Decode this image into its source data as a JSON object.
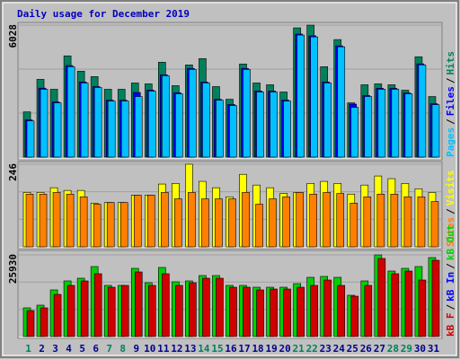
{
  "title": "Daily usage for December 2019",
  "legend_separator": "/",
  "chart_data": [
    {
      "type": "bar",
      "ylim": [
        0,
        6028
      ],
      "yticks": [
        6028
      ],
      "series": [
        {
          "name": "Pages",
          "color": "#00c0ff",
          "values": [
            1651,
            3097,
            2477,
            4129,
            3386,
            3179,
            2560,
            2560,
            2766,
            3014,
            3716,
            2890,
            4005,
            3386,
            2601,
            2353,
            4005,
            2973,
            2973,
            2560,
            5574,
            5491,
            3386,
            5037,
            2271,
            2766,
            3097,
            3097,
            2890,
            4211,
            2394
          ]
        },
        {
          "name": "Files",
          "color": "#0000ff",
          "values": [
            1700,
            3150,
            2520,
            4180,
            3430,
            3220,
            2600,
            2600,
            2950,
            3060,
            3760,
            2940,
            4050,
            3430,
            2640,
            2400,
            4050,
            3020,
            3020,
            2600,
            5620,
            5540,
            3430,
            5080,
            2420,
            2810,
            3140,
            3140,
            2930,
            4260,
            2440
          ]
        },
        {
          "name": "Hits",
          "color": "#00805c",
          "values": [
            2064,
            3551,
            3097,
            4624,
            3922,
            3675,
            3097,
            3097,
            3386,
            3344,
            4335,
            3262,
            4211,
            4500,
            3220,
            2642,
            4253,
            3386,
            3303,
            2973,
            5904,
            6028,
            4129,
            5367,
            2477,
            3303,
            3344,
            3303,
            3055,
            4583,
            2766
          ]
        }
      ]
    },
    {
      "type": "bar",
      "ylim": [
        0,
        246
      ],
      "yticks": [
        246
      ],
      "series": [
        {
          "name": "Sites",
          "color": "#ff8000",
          "values": [
            157,
            157,
            162,
            157,
            149,
            127,
            132,
            132,
            154,
            154,
            162,
            143,
            162,
            143,
            143,
            143,
            162,
            127,
            143,
            149,
            162,
            157,
            162,
            159,
            130,
            149,
            157,
            157,
            149,
            149,
            135
          ]
        },
        {
          "name": "Visits",
          "color": "#ffff00",
          "values": [
            162,
            162,
            176,
            168,
            168,
            130,
            132,
            132,
            154,
            154,
            187,
            189,
            246,
            195,
            176,
            149,
            216,
            184,
            176,
            159,
            162,
            189,
            195,
            189,
            157,
            184,
            211,
            203,
            189,
            173,
            162
          ]
        }
      ]
    },
    {
      "type": "bar",
      "ylim": [
        0,
        25930
      ],
      "yticks": [
        25930
      ],
      "categories": [
        "1",
        "2",
        "3",
        "4",
        "5",
        "6",
        "7",
        "8",
        "9",
        "10",
        "11",
        "12",
        "13",
        "14",
        "15",
        "16",
        "17",
        "18",
        "19",
        "20",
        "21",
        "22",
        "23",
        "24",
        "25",
        "26",
        "27",
        "28",
        "29",
        "30",
        "31"
      ],
      "category_colors": [
        "#00805c",
        "#00008b",
        "#00008b",
        "#00008b",
        "#00008b",
        "#00008b",
        "#00805c",
        "#00805c",
        "#00008b",
        "#00008b",
        "#00008b",
        "#00008b",
        "#00008b",
        "#00805c",
        "#00805c",
        "#00008b",
        "#00008b",
        "#00008b",
        "#00008b",
        "#00008b",
        "#00805c",
        "#00805c",
        "#00008b",
        "#00008b",
        "#00008b",
        "#00008b",
        "#00008b",
        "#00805c",
        "#00805c",
        "#00008b",
        "#00008b"
      ],
      "series": [
        {
          "name": "kB F",
          "color": "#d00000",
          "values": [
            8263,
            9118,
            13392,
            16242,
            17666,
            19946,
            15672,
            16242,
            20516,
            16242,
            19946,
            16242,
            17096,
            18521,
            18521,
            15672,
            15672,
            14817,
            15102,
            15102,
            15672,
            16242,
            17951,
            16242,
            12822,
            16242,
            24790,
            19946,
            20801,
            17951,
            24220
          ]
        },
        {
          "name": "kB In",
          "color": "#0000ff",
          "values": [
            0,
            0,
            0,
            0,
            0,
            0,
            0,
            0,
            0,
            0,
            0,
            0,
            0,
            0,
            0,
            0,
            0,
            0,
            0,
            0,
            0,
            0,
            0,
            0,
            0,
            0,
            0,
            0,
            0,
            0,
            0
          ]
        },
        {
          "name": "kB Out",
          "color": "#00d000",
          "values": [
            9118,
            9973,
            14817,
            17666,
            18521,
            22226,
            16242,
            16242,
            21656,
            17096,
            21941,
            17381,
            17666,
            19376,
            19376,
            16242,
            16242,
            15672,
            15672,
            15672,
            16812,
            18806,
            19091,
            18806,
            13107,
            17666,
            25930,
            20801,
            21656,
            22226,
            25075
          ]
        }
      ]
    }
  ]
}
